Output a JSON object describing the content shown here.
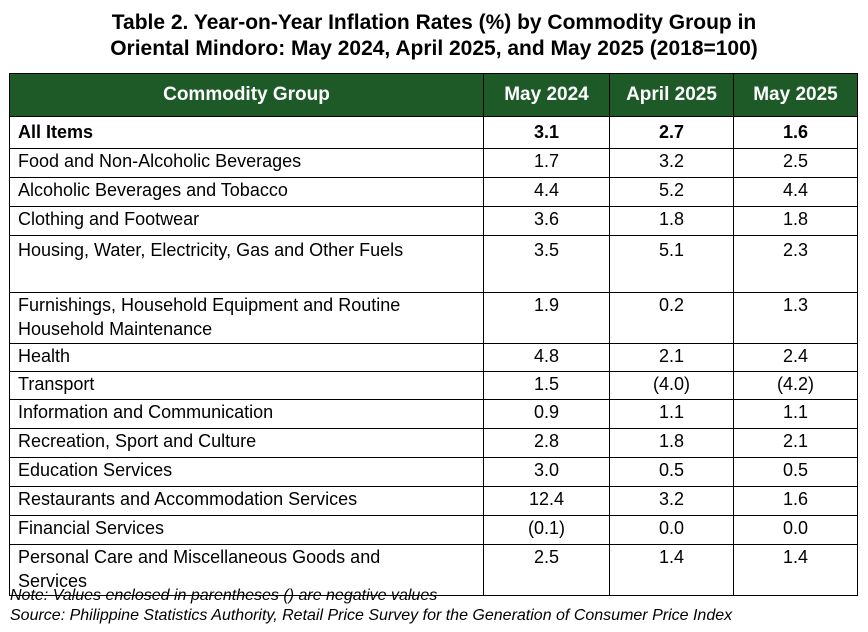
{
  "title": {
    "line1": "Table 2. Year-on-Year Inflation Rates (%) by Commodity Group in",
    "line2": "Oriental Mindoro: May 2024, April 2025, and May 2025 (2018=100)"
  },
  "table": {
    "header_color": "#1e5a27",
    "headers": [
      "Commodity Group",
      "May 2024",
      "April 2025",
      "May 2025"
    ],
    "rows": [
      {
        "group": "All Items",
        "may_2024": "3.1",
        "april_2025": "2.7",
        "may_2025": "1.6"
      },
      {
        "group": "Food and Non-Alcoholic Beverages",
        "may_2024": "1.7",
        "april_2025": "3.2",
        "may_2025": "2.5"
      },
      {
        "group": "Alcoholic Beverages and Tobacco",
        "may_2024": "4.4",
        "april_2025": "5.2",
        "may_2025": "4.4"
      },
      {
        "group": "Clothing and Footwear",
        "may_2024": "3.6",
        "april_2025": "1.8",
        "may_2025": "1.8"
      },
      {
        "group": "Housing, Water, Electricity, Gas and Other Fuels",
        "may_2024": "3.5",
        "april_2025": "5.1",
        "may_2025": "2.3"
      },
      {
        "group": "Furnishings, Household Equipment and Routine Household Maintenance",
        "may_2024": "1.9",
        "april_2025": "0.2",
        "may_2025": "1.3"
      },
      {
        "group": "Health",
        "may_2024": "4.8",
        "april_2025": "2.1",
        "may_2025": "2.4"
      },
      {
        "group": "Transport",
        "may_2024": "1.5",
        "april_2025": "(4.0)",
        "may_2025": "(4.2)"
      },
      {
        "group": "Information and Communication",
        "may_2024": "0.9",
        "april_2025": "1.1",
        "may_2025": "1.1"
      },
      {
        "group": "Recreation, Sport and Culture",
        "may_2024": "2.8",
        "april_2025": "1.8",
        "may_2025": "2.1"
      },
      {
        "group": "Education Services",
        "may_2024": "3.0",
        "april_2025": "0.5",
        "may_2025": "0.5"
      },
      {
        "group": "Restaurants and Accommodation Services",
        "may_2024": "12.4",
        "april_2025": "3.2",
        "may_2025": "1.6"
      },
      {
        "group": "Financial Services",
        "may_2024": "(0.1)",
        "april_2025": "0.0",
        "may_2025": "0.0"
      },
      {
        "group": "Personal Care and Miscellaneous Goods and Services",
        "may_2024": "2.5",
        "april_2025": "1.4",
        "may_2025": "1.4"
      }
    ]
  },
  "notes": {
    "note": "Note: Values enclosed in parentheses () are negative values",
    "source": "Source: Philippine Statistics Authority, Retail Price Survey for the Generation of Consumer Price Index"
  }
}
